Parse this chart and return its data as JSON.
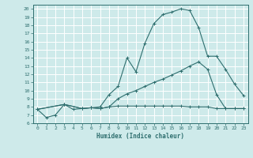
{
  "xlabel": "Humidex (Indice chaleur)",
  "bg_color": "#ceeaea",
  "grid_color": "#ffffff",
  "line_color": "#2e6e6e",
  "xlim": [
    -0.5,
    23.5
  ],
  "ylim": [
    6,
    20.5
  ],
  "xticks": [
    0,
    1,
    2,
    3,
    4,
    5,
    6,
    7,
    8,
    9,
    10,
    11,
    12,
    13,
    14,
    15,
    16,
    17,
    18,
    19,
    20,
    21,
    22,
    23
  ],
  "yticks": [
    6,
    7,
    8,
    9,
    10,
    11,
    12,
    13,
    14,
    15,
    16,
    17,
    18,
    19,
    20
  ],
  "line1_x": [
    0,
    1,
    2,
    3,
    4,
    5,
    6,
    7,
    8,
    9,
    10,
    11,
    12,
    13,
    14,
    15,
    16,
    17,
    18,
    19,
    20,
    21,
    22,
    23
  ],
  "line1_y": [
    7.7,
    6.7,
    7.0,
    8.3,
    7.7,
    7.8,
    7.9,
    8.0,
    9.5,
    10.5,
    14.0,
    12.3,
    15.8,
    18.2,
    19.3,
    19.6,
    20.0,
    19.8,
    17.7,
    14.2,
    14.2,
    12.6,
    10.8,
    9.4
  ],
  "line2_x": [
    0,
    3,
    5,
    6,
    7,
    8,
    9,
    10,
    11,
    12,
    13,
    14,
    15,
    16,
    17,
    18,
    19,
    20,
    21,
    22,
    23
  ],
  "line2_y": [
    7.7,
    8.3,
    7.8,
    7.9,
    7.8,
    8.0,
    9.0,
    9.6,
    10.0,
    10.5,
    11.0,
    11.4,
    11.9,
    12.4,
    13.0,
    13.5,
    12.6,
    9.5,
    7.8,
    7.8,
    7.8
  ],
  "line3_x": [
    0,
    3,
    5,
    6,
    7,
    8,
    9,
    10,
    11,
    12,
    13,
    14,
    15,
    16,
    17,
    18,
    19,
    20,
    21,
    22,
    23
  ],
  "line3_y": [
    7.7,
    8.3,
    7.8,
    7.9,
    7.8,
    8.0,
    8.1,
    8.1,
    8.1,
    8.1,
    8.1,
    8.1,
    8.1,
    8.1,
    8.0,
    8.0,
    8.0,
    7.8,
    7.8,
    7.8,
    7.8
  ]
}
